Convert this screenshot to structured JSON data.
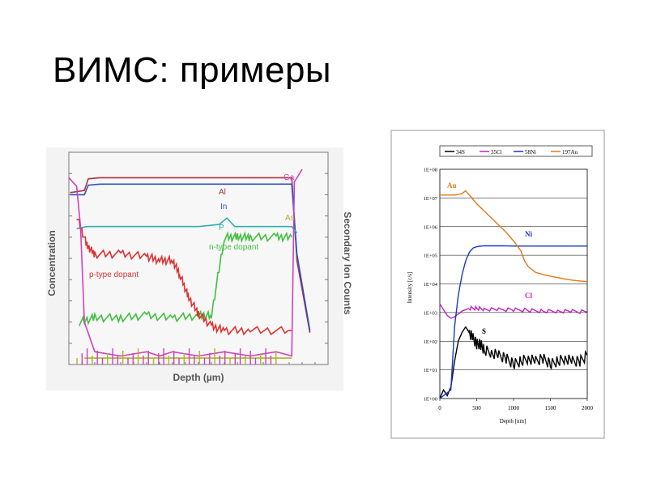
{
  "slide": {
    "title": "ВИМС: примеры"
  },
  "chart_data": [
    {
      "type": "line",
      "title": "",
      "xlabel": "Depth (µm)",
      "ylabel": "Concentration",
      "y2label": "Secondary Ion Counts",
      "xlim": [
        0,
        10
      ],
      "ylim": [
        0,
        10
      ],
      "grid": false,
      "annotations": [
        {
          "text": "Al",
          "color": "#b03040"
        },
        {
          "text": "In",
          "color": "#3050c0"
        },
        {
          "text": "P",
          "color": "#30b0b0"
        },
        {
          "text": "n-type dopant",
          "color": "#40c040"
        },
        {
          "text": "p-type dopant",
          "color": "#e03030"
        },
        {
          "text": "Ga",
          "color": "#d040c0"
        },
        {
          "text": "As",
          "color": "#b0b030"
        }
      ],
      "series": [
        {
          "name": "Al",
          "color": "#b03040",
          "x": [
            0.05,
            0.6,
            0.75,
            1.2,
            3,
            5,
            6.2,
            8.6,
            8.8,
            9.3
          ],
          "y": [
            8.1,
            8.2,
            8.75,
            8.8,
            8.8,
            8.8,
            8.8,
            8.8,
            4.9,
            1.5
          ]
        },
        {
          "name": "In",
          "color": "#3050c0",
          "x": [
            0.05,
            0.6,
            0.75,
            1.2,
            3,
            5,
            6.2,
            8.6,
            8.8,
            9.3
          ],
          "y": [
            8.0,
            8.0,
            8.45,
            8.5,
            8.5,
            8.5,
            8.5,
            8.5,
            5.2,
            1.6
          ]
        },
        {
          "name": "P",
          "color": "#30b0b0",
          "x": [
            0.3,
            0.7,
            1.2,
            3,
            5,
            5.8,
            6.1,
            6.4,
            8.6,
            8.8
          ],
          "y": [
            6.4,
            6.5,
            6.5,
            6.5,
            6.5,
            6.6,
            6.9,
            6.5,
            6.5,
            6.2
          ]
        },
        {
          "name": "n-type dopant",
          "color": "#40c040",
          "x": [
            0.4,
            1,
            2,
            3,
            4,
            5,
            5.5,
            6,
            6.5,
            7,
            8,
            8.6
          ],
          "y": [
            2,
            2.2,
            2.2,
            2.3,
            2.2,
            2.3,
            2.3,
            6,
            6,
            6,
            6,
            6
          ]
        },
        {
          "name": "p-type dopant",
          "color": "#e03030",
          "x": [
            0.3,
            0.7,
            1,
            2,
            3,
            3.5,
            4,
            4.3,
            4.6,
            5,
            5.5,
            6,
            7,
            8.6
          ],
          "y": [
            7,
            5.6,
            5.2,
            5.2,
            5.1,
            4.9,
            4.9,
            4.2,
            3.2,
            2.4,
            1.8,
            1.6,
            1.6,
            1.6
          ]
        },
        {
          "name": "Ga",
          "color": "#d040c0",
          "x": [
            0,
            0.3,
            0.45,
            0.6,
            1,
            2,
            3,
            3.5,
            4,
            5,
            6,
            7,
            8,
            8.6,
            8.7,
            9
          ],
          "y": [
            8.8,
            8.4,
            6.5,
            2,
            0.6,
            0.4,
            0.6,
            0.4,
            0.6,
            0.4,
            0.6,
            0.4,
            0.6,
            0.4,
            8.6,
            9.2
          ]
        },
        {
          "name": "As",
          "color": "#b0b030",
          "x": [
            0.6,
            1.5,
            3,
            4.5,
            6,
            7.5,
            8.6
          ],
          "y": [
            0.3,
            0.3,
            0.3,
            0.3,
            0.3,
            0.3,
            0.3
          ]
        }
      ]
    },
    {
      "type": "line",
      "title": "",
      "xlabel": "Depth [nm]",
      "ylabel": "Intensity [c/s]",
      "xlim": [
        0,
        2000
      ],
      "xticks": [
        "0",
        "500",
        "1000",
        "1500",
        "2000"
      ],
      "yticks": [
        "1E+00",
        "1E+01",
        "1E+02",
        "1E+03",
        "1E+04",
        "1E+05",
        "1E+06",
        "1E+07",
        "1E+08"
      ],
      "legend": [
        "34S",
        "35Cl",
        "58Ni",
        "197Au"
      ],
      "legend_position": "top",
      "grid": true,
      "annotations": [
        {
          "text": "Au",
          "color": "#e07818"
        },
        {
          "text": "Ni",
          "color": "#1838c0"
        },
        {
          "text": "Cl",
          "color": "#c020c0"
        },
        {
          "text": "S",
          "color": "#000000"
        }
      ],
      "series": [
        {
          "name": "34S",
          "color": "#000000",
          "x": [
            0,
            50,
            100,
            150,
            200,
            250,
            300,
            350,
            400,
            450,
            500,
            550,
            600,
            700,
            800,
            900,
            1000,
            1100,
            1200,
            1300,
            1400,
            1500,
            1600,
            1700,
            1800,
            1900,
            2000
          ],
          "y": [
            0,
            0.3,
            0.1,
            0.4,
            1.3,
            2,
            2.3,
            2.5,
            2.3,
            2.1,
            1.9,
            1.9,
            1.7,
            1.6,
            1.5,
            1.4,
            1.2,
            1.3,
            1.4,
            1.3,
            1.4,
            1.2,
            1.3,
            1.4,
            1.3,
            1.3,
            1.5
          ]
        },
        {
          "name": "35Cl",
          "color": "#c020c0",
          "x": [
            0,
            50,
            100,
            150,
            200,
            300,
            400,
            500,
            600,
            800,
            1000,
            1200,
            1400,
            1600,
            1800,
            2000
          ],
          "y": [
            3.3,
            3.1,
            2.9,
            2.8,
            2.85,
            3.05,
            3.15,
            3.15,
            3.12,
            3.1,
            3.1,
            3.08,
            3.05,
            3.05,
            3.04,
            3.03
          ]
        },
        {
          "name": "58Ni",
          "color": "#1838c0",
          "x": [
            0,
            150,
            200,
            250,
            300,
            350,
            400,
            450,
            500,
            600,
            800,
            1000,
            1200,
            1400,
            1600,
            1800,
            2000
          ],
          "y": [
            0,
            0.3,
            2.5,
            3.6,
            4.3,
            4.8,
            5.1,
            5.25,
            5.3,
            5.33,
            5.33,
            5.32,
            5.32,
            5.32,
            5.32,
            5.32,
            5.32
          ]
        },
        {
          "name": "197Au",
          "color": "#e07818",
          "x": [
            0,
            100,
            200,
            300,
            350,
            400,
            500,
            600,
            700,
            800,
            900,
            1000,
            1100,
            1150,
            1200,
            1300,
            1400,
            1500,
            1600,
            1700,
            1800,
            1900,
            2000
          ],
          "y": [
            7.1,
            7.1,
            7.1,
            7.15,
            7.25,
            7.1,
            6.8,
            6.55,
            6.3,
            6.05,
            5.8,
            5.5,
            5.15,
            4.8,
            4.6,
            4.4,
            4.33,
            4.27,
            4.22,
            4.17,
            4.13,
            4.1,
            4.08
          ]
        }
      ]
    }
  ]
}
